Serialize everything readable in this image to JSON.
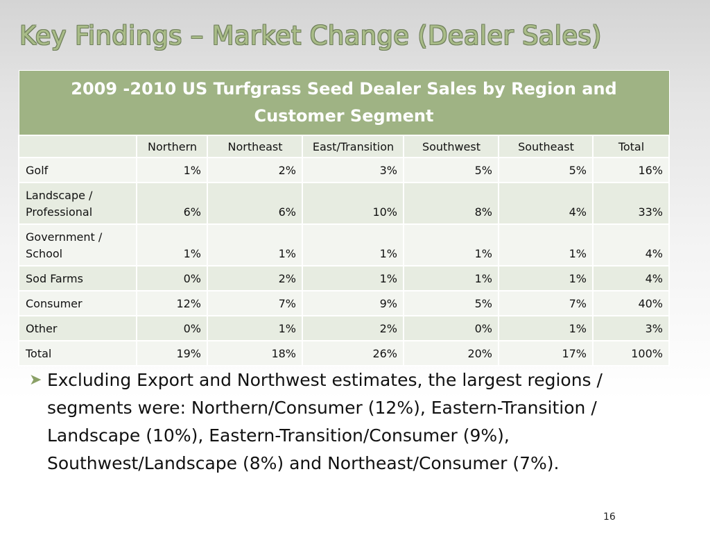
{
  "slide": {
    "title": "Key Findings – Market Change (Dealer Sales)",
    "page_number": "16"
  },
  "table": {
    "caption": "2009 -2010 US Turfgrass Seed Dealer Sales by Region and Customer Segment",
    "headers": [
      "",
      "Northern",
      "Northeast",
      "East/Transition",
      "Southwest",
      "Southeast",
      "Total"
    ],
    "rows": [
      {
        "segment": "Golf",
        "values": [
          "1%",
          "2%",
          "3%",
          "5%",
          "5%",
          "16%"
        ]
      },
      {
        "segment": "Landscape / Professional",
        "values": [
          "6%",
          "6%",
          "10%",
          "8%",
          "4%",
          "33%"
        ]
      },
      {
        "segment": "Government / School",
        "values": [
          "1%",
          "1%",
          "1%",
          "1%",
          "1%",
          "4%"
        ]
      },
      {
        "segment": "Sod Farms",
        "values": [
          "0%",
          "2%",
          "1%",
          "1%",
          "1%",
          "4%"
        ]
      },
      {
        "segment": "Consumer",
        "values": [
          "12%",
          "7%",
          "9%",
          "5%",
          "7%",
          "40%"
        ]
      },
      {
        "segment": "Other",
        "values": [
          "0%",
          "1%",
          "2%",
          "0%",
          "1%",
          "3%"
        ]
      },
      {
        "segment": "Total",
        "values": [
          "19%",
          "18%",
          "26%",
          "20%",
          "17%",
          "100%"
        ]
      }
    ]
  },
  "bullet": {
    "icon": "arrow-bullet-icon",
    "text": "Excluding Export and Northwest estimates, the largest regions / segments were: Northern/Consumer (12%), Eastern-Transition / Landscape (10%), Eastern-Transition/Consumer (9%), Southwest/Landscape (8%) and Northeast/Consumer (7%)."
  },
  "colors": {
    "title": "#a9bc88",
    "caption_bg": "#9fb384",
    "row_dark": "#e7ece1",
    "row_light": "#f3f5f0",
    "bullet_arrow": "#8aa066"
  }
}
